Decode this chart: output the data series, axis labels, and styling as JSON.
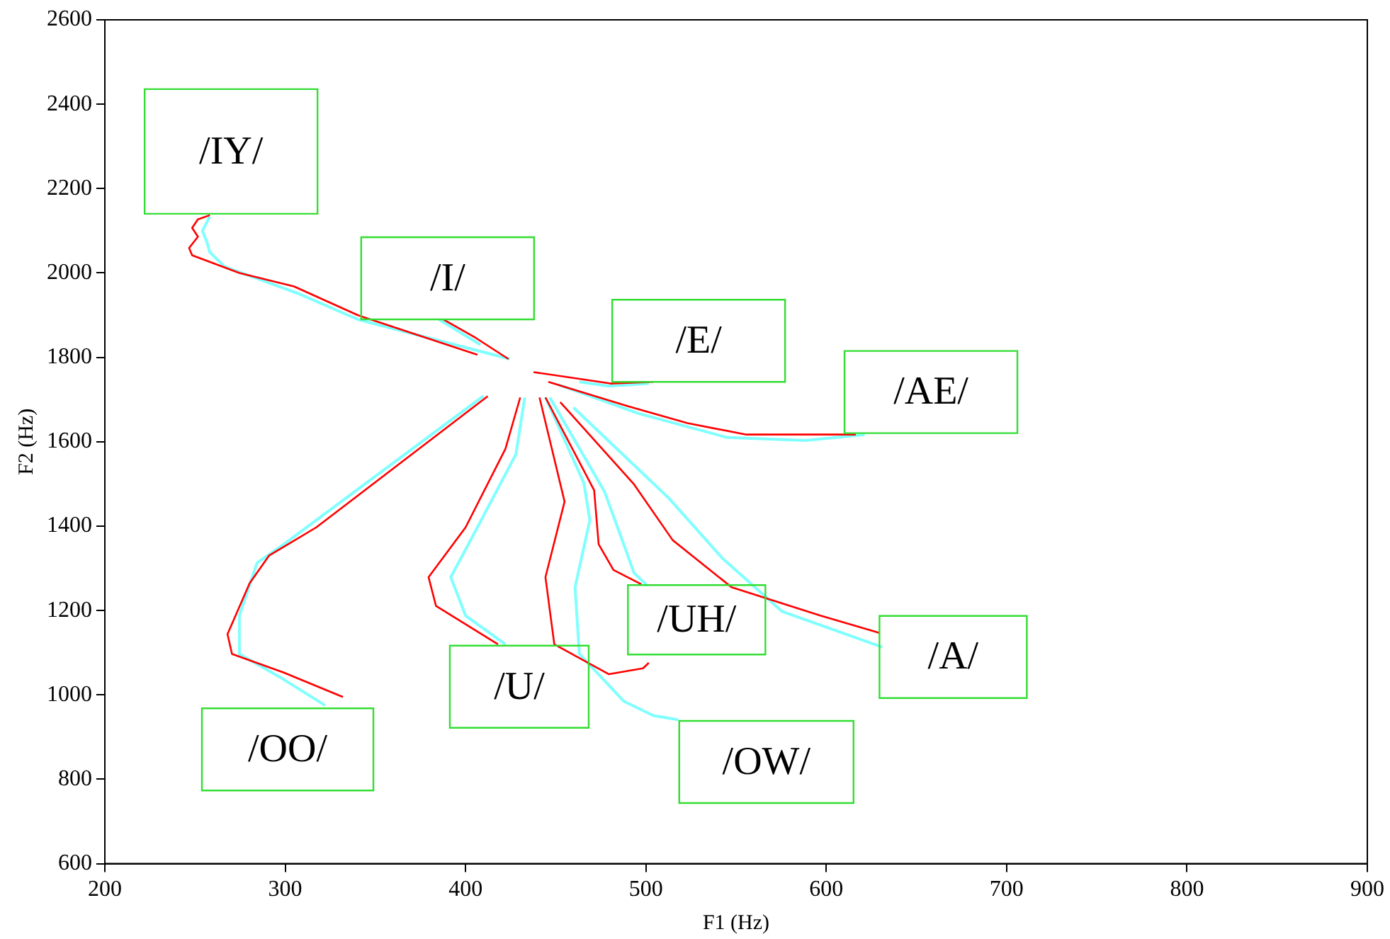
{
  "chart_data": {
    "type": "line",
    "xlabel": "F1 (Hz)",
    "ylabel": "F2 (Hz)",
    "xlim": [
      200,
      900
    ],
    "xticks": [
      200,
      300,
      400,
      500,
      600,
      700,
      800,
      900
    ],
    "ylim": [
      600,
      2600
    ],
    "yticks": [
      600,
      800,
      1000,
      1200,
      1400,
      1600,
      1800,
      2000,
      2200,
      2400,
      2600
    ],
    "grid": false,
    "legend": false,
    "marker": "none",
    "line_style": "solid",
    "series": [
      {
        "name": "/IY/",
        "color": "#ff0000",
        "x": [
          406.6,
          340.2,
          304.9,
          274.6,
          248.4,
          246.7,
          251.6,
          248.4,
          251.6,
          258.2
        ],
        "values": [
          1806,
          1900,
          1968,
          2000,
          2042,
          2059,
          2086,
          2107,
          2127,
          2137
        ]
      },
      {
        "color": "#80ffff",
        "x": [
          424.6,
          340.2,
          307.4,
          266.4,
          258.2,
          256.6,
          254.1,
          258.2
        ],
        "values": [
          1796,
          1890,
          1951,
          2015,
          2049,
          2073,
          2100,
          2134
        ]
      },
      {
        "name": "/I/",
        "color": "#ff0000",
        "x": [
          423.8,
          405.7,
          387.7
        ],
        "values": [
          1796,
          1846,
          1890
        ]
      },
      {
        "color": "#80ffff",
        "x": [
          408.2,
          385.2
        ],
        "values": [
          1830,
          1890
        ]
      },
      {
        "name": "/E/",
        "color": "#ff0000",
        "x": [
          437.7,
          463.1,
          480.3,
          504.1
        ],
        "values": [
          1765,
          1749,
          1738,
          1742
        ]
      },
      {
        "color": "#80ffff",
        "x": [
          463.1,
          479.5,
          501.6
        ],
        "values": [
          1742,
          1732,
          1738
        ]
      },
      {
        "name": "/AE/",
        "color": "#ff0000",
        "x": [
          445.9,
          490.2,
          523.0,
          555.7,
          588.5,
          616.4
        ],
        "values": [
          1742,
          1684,
          1644,
          1617,
          1617,
          1617
        ]
      },
      {
        "color": "#80ffff",
        "x": [
          451.6,
          495.9,
          545.1,
          588.5,
          621.3
        ],
        "values": [
          1735,
          1667,
          1610,
          1603,
          1617
        ]
      },
      {
        "name": "/OO/",
        "color": "#ff0000",
        "x": [
          412.3,
          317.2,
          291.0,
          280.3,
          268.0,
          270.5,
          299.2,
          332.0
        ],
        "values": [
          1708,
          1397,
          1330,
          1265,
          1144,
          1097,
          1053,
          995
        ]
      },
      {
        "color": "#80ffff",
        "x": [
          409.8,
          299.2,
          284.4,
          274.6,
          274.6,
          296.7,
          322.1
        ],
        "values": [
          1708,
          1357,
          1313,
          1188,
          1097,
          1043,
          975
        ]
      },
      {
        "name": "/U/",
        "color": "#ff0000",
        "x": [
          430.3,
          422.1,
          400.0,
          379.5,
          383.6,
          418.0
        ],
        "values": [
          1705,
          1583,
          1397,
          1279,
          1211,
          1120
        ]
      },
      {
        "color": "#80ffff",
        "x": [
          432.8,
          427.9,
          405.7,
          391.8,
          400.0,
          422.1
        ],
        "values": [
          1705,
          1570,
          1390,
          1279,
          1188,
          1120
        ]
      },
      {
        "name": "/OW/",
        "color": "#ff0000",
        "x": [
          441.0,
          454.9,
          444.3,
          449.2,
          479.5,
          498.4,
          501.6
        ],
        "values": [
          1705,
          1458,
          1279,
          1120,
          1049,
          1063,
          1076
        ]
      },
      {
        "color": "#80ffff",
        "x": [
          444.3,
          465.6,
          468.9,
          460.7,
          463.1,
          487.7,
          504.1,
          518.0
        ],
        "values": [
          1705,
          1502,
          1414,
          1255,
          1097,
          985,
          951,
          941
        ]
      },
      {
        "name": "/UH/",
        "color": "#ff0000",
        "x": [
          444.3,
          471.3,
          473.8,
          482.0,
          497.5
        ],
        "values": [
          1705,
          1485,
          1357,
          1296,
          1262
        ]
      },
      {
        "color": "#80ffff",
        "x": [
          446.7,
          477.0,
          487.7,
          493.4,
          500.8
        ],
        "values": [
          1705,
          1482,
          1357,
          1289,
          1259
        ]
      },
      {
        "name": "/A/",
        "color": "#ff0000",
        "x": [
          452.5,
          493.4,
          514.8,
          547.5,
          596.7,
          629.5
        ],
        "values": [
          1694,
          1499,
          1367,
          1255,
          1188,
          1147
        ]
      },
      {
        "color": "#80ffff",
        "x": [
          459.8,
          512.3,
          542.6,
          575.4,
          631.1
        ],
        "values": [
          1681,
          1468,
          1323,
          1198,
          1113
        ]
      }
    ]
  }
}
